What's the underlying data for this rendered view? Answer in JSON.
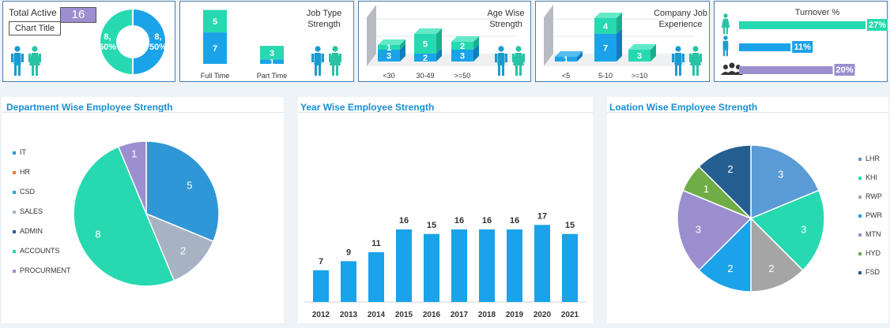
{
  "colors": {
    "blue": "#1aa3e8",
    "teal": "#27d9b0",
    "lavender": "#9b8fd0",
    "grey": "#a7b3c3",
    "border": "#4a7fb0",
    "title": "#1a8fd1"
  },
  "kpi": {
    "total_active_label": "Total Active",
    "total_active_value": "16",
    "tooltip": "Chart Title",
    "donut_labels": [
      "8,\n50%",
      "8,\n50%"
    ]
  },
  "job_type": {
    "title": "Job Type Strength",
    "icon": "male-female-icon"
  },
  "age_wise": {
    "title": "Age Wise Strength",
    "icon": "male-female-icon"
  },
  "company_job": {
    "title": "Company Job Experience",
    "icon": "male-female-icon"
  },
  "turnover": {
    "title": "Turnover %",
    "rows": [
      {
        "icon": "female-icon",
        "label": "27%",
        "value": 27,
        "color": "#27d9b0"
      },
      {
        "icon": "male-icon",
        "label": "11%",
        "value": 11,
        "color": "#1aa3e8"
      },
      {
        "icon": "group-icon",
        "label": "20%",
        "value": 20,
        "color": "#9b8fd0"
      }
    ]
  },
  "department": {
    "title": "Department Wise Employee Strength",
    "legend": [
      "IT",
      "HR",
      "CSD",
      "SALES",
      "ADMIN",
      "ACCOUNTS",
      "PROCURMENT"
    ],
    "legend_colors": [
      "#2f97d6",
      "#ed7d31",
      "#22a8c9",
      "#a7b3c3",
      "#2f5f96",
      "#27d9b0",
      "#9b8fd0"
    ]
  },
  "year_wise": {
    "title": "Year Wise Employee Strength"
  },
  "location": {
    "title": "Loation Wise Employee Strength",
    "legend": [
      "LHR",
      "KHI",
      "RWP",
      "PWR",
      "MTN",
      "HYD",
      "FSD"
    ],
    "legend_colors": [
      "#5b9bd5",
      "#27d9b0",
      "#a5a5a5",
      "#1aa3e8",
      "#9b8fd0",
      "#70ad47",
      "#255e91"
    ]
  },
  "chart_data": [
    {
      "type": "pie",
      "title": "",
      "categories": [
        "Male",
        "Female"
      ],
      "values": [
        8,
        8
      ],
      "labels": [
        "8, 50%",
        "8, 50%"
      ]
    },
    {
      "type": "bar",
      "title": "Job Type Strength",
      "categories": [
        "Full Time",
        "Part Time"
      ],
      "series": [
        {
          "values": [
            7,
            1
          ]
        },
        {
          "values": [
            5,
            3
          ]
        }
      ]
    },
    {
      "type": "bar",
      "title": "Age Wise Strength",
      "categories": [
        "<30",
        "30-49",
        ">=50"
      ],
      "series": [
        {
          "values": [
            3,
            2,
            3
          ]
        },
        {
          "values": [
            1,
            5,
            2
          ]
        }
      ]
    },
    {
      "type": "bar",
      "title": "Company Job Experience",
      "categories": [
        "<5",
        "5-10",
        ">=10"
      ],
      "series": [
        {
          "values": [
            1,
            7,
            0
          ]
        },
        {
          "values": [
            0,
            4,
            3
          ]
        }
      ]
    },
    {
      "type": "bar",
      "title": "Turnover %",
      "categories": [
        "Female",
        "Male",
        "Overall"
      ],
      "values": [
        27,
        11,
        20
      ]
    },
    {
      "type": "pie",
      "title": "Department Wise Employee Strength",
      "categories": [
        "IT",
        "HR",
        "CSD",
        "SALES",
        "ADMIN",
        "ACCOUNTS",
        "PROCURMENT"
      ],
      "values": [
        5,
        0,
        0,
        2,
        0,
        8,
        1
      ]
    },
    {
      "type": "bar",
      "title": "Year Wise Employee Strength",
      "categories": [
        "2012",
        "2013",
        "2014",
        "2015",
        "2016",
        "2017",
        "2018",
        "2019",
        "2020",
        "2021"
      ],
      "values": [
        7,
        9,
        11,
        16,
        15,
        16,
        16,
        16,
        17,
        15
      ]
    },
    {
      "type": "pie",
      "title": "Loation Wise Employee Strength",
      "categories": [
        "LHR",
        "KHI",
        "RWP",
        "PWR",
        "MTN",
        "HYD",
        "FSD"
      ],
      "values": [
        3,
        3,
        2,
        2,
        3,
        1,
        2
      ]
    }
  ]
}
